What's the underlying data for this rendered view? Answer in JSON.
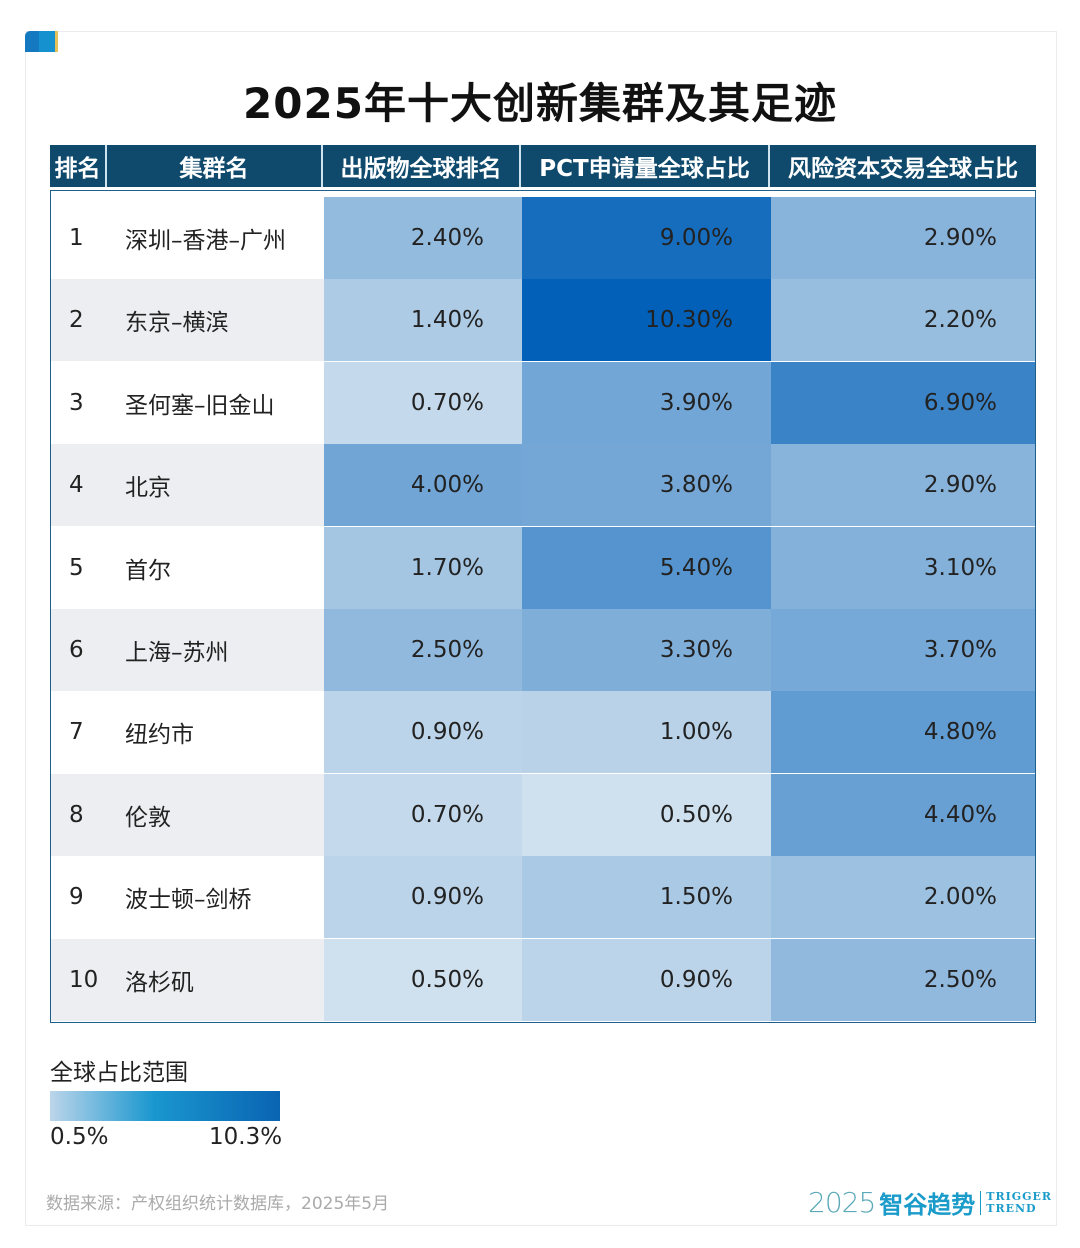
{
  "title": "2025年十大创新集群及其足迹",
  "headers": [
    "排名",
    "集群名",
    "出版物全球排名",
    "PCT申请量全球占比",
    "风险资本交易全球占比"
  ],
  "chart_data": {
    "type": "heatmap",
    "title": "2025年十大创新集群及其足迹",
    "columns": [
      "排名",
      "集群名",
      "出版物全球排名",
      "PCT申请量全球占比",
      "风险资本交易全球占比"
    ],
    "rows": [
      {
        "rank": "1",
        "name": "深圳–香港–广州",
        "values": [
          2.4,
          9.0,
          2.9
        ]
      },
      {
        "rank": "2",
        "name": "东京–横滨",
        "values": [
          1.4,
          10.3,
          2.2
        ]
      },
      {
        "rank": "3",
        "name": "圣何塞–旧金山",
        "values": [
          0.7,
          3.9,
          6.9
        ]
      },
      {
        "rank": "4",
        "name": "北京",
        "values": [
          4.0,
          3.8,
          2.9
        ]
      },
      {
        "rank": "5",
        "name": "首尔",
        "values": [
          1.7,
          5.4,
          3.1
        ]
      },
      {
        "rank": "6",
        "name": "上海–苏州",
        "values": [
          2.5,
          3.3,
          3.7
        ]
      },
      {
        "rank": "7",
        "name": "纽约市",
        "values": [
          0.9,
          1.0,
          4.8
        ]
      },
      {
        "rank": "8",
        "name": "伦敦",
        "values": [
          0.7,
          0.5,
          4.4
        ]
      },
      {
        "rank": "9",
        "name": "波士顿–剑桥",
        "values": [
          0.9,
          1.5,
          2.0
        ]
      },
      {
        "rank": "10",
        "name": "洛杉矶",
        "values": [
          0.5,
          0.9,
          2.5
        ]
      }
    ],
    "color_scale": {
      "min": 0.5,
      "max": 10.3,
      "min_color": "#cfe0ee",
      "max_color": "#0260b8"
    }
  },
  "legend": {
    "title": "全球占比范围",
    "min_label": "0.5%",
    "max_label": "10.3%"
  },
  "source": "数据来源：产权组织统计数据库，2025年5月",
  "logo": {
    "year": "2025",
    "name": "智谷趋势",
    "en1": "TRIGGER",
    "en2": "TREND"
  }
}
